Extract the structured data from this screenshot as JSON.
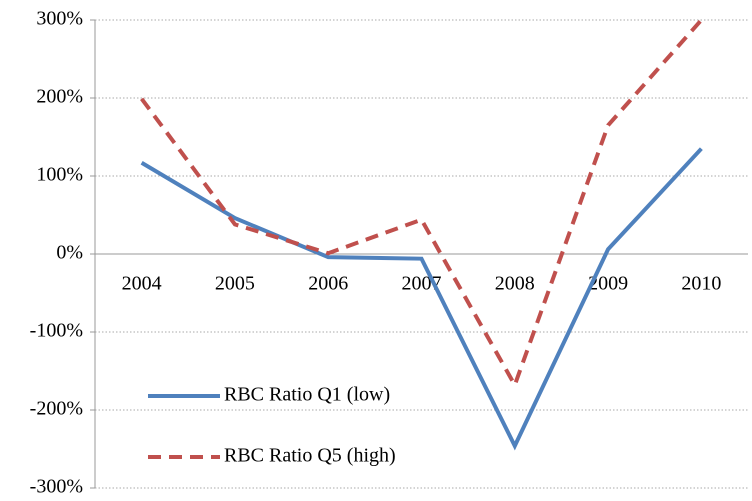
{
  "chart_data": {
    "type": "line",
    "categories": [
      "2004",
      "2005",
      "2006",
      "2007",
      "2008",
      "2009",
      "2010"
    ],
    "series": [
      {
        "name": "RBC Ratio Q1 (low)",
        "color": "#4f81bd",
        "dash": false,
        "values": [
          117,
          46,
          -4,
          -6,
          -246,
          6,
          135
        ]
      },
      {
        "name": "RBC Ratio Q5 (high)",
        "color": "#c0504d",
        "dash": true,
        "values": [
          199,
          38,
          1,
          44,
          -168,
          165,
          300
        ]
      }
    ],
    "ylim": [
      -300,
      300
    ],
    "yticks": [
      {
        "value": -300,
        "label": "-300%"
      },
      {
        "value": -200,
        "label": "-200%"
      },
      {
        "value": -100,
        "label": "-100%"
      },
      {
        "value": 0,
        "label": "0%"
      },
      {
        "value": 100,
        "label": "100%"
      },
      {
        "value": 200,
        "label": "200%"
      },
      {
        "value": 300,
        "label": "300%"
      }
    ],
    "grid": true,
    "legend": "lower-left"
  }
}
